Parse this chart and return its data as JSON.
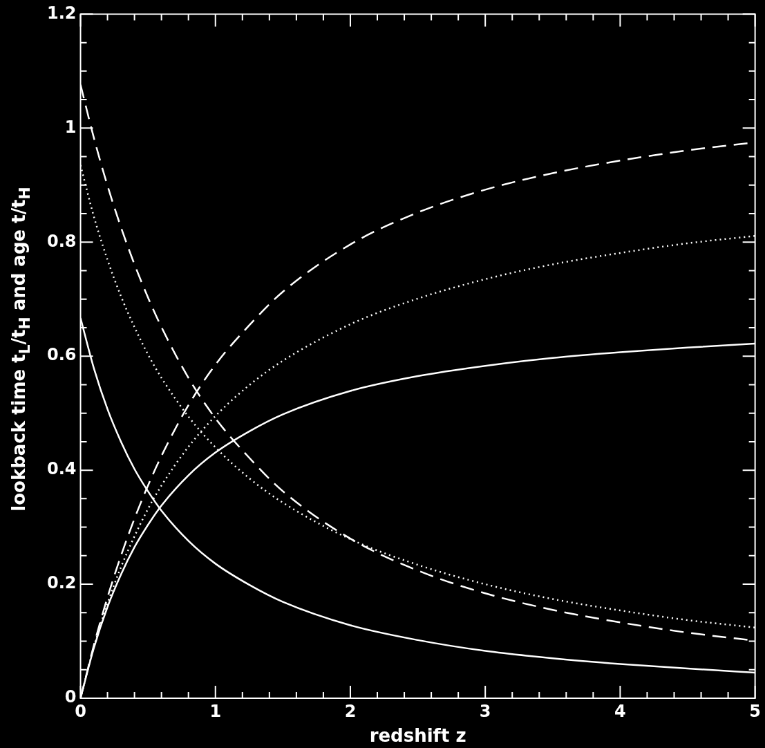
{
  "chart_data": {
    "type": "line",
    "xlabel": "redshift z",
    "ylabel": "lookback time  t$_{L}$/t$_{H}$  and age  t/t$_{H}$",
    "x": [
      0,
      0.1,
      0.2,
      0.3,
      0.4,
      0.5,
      0.6,
      0.8,
      1,
      1.25,
      1.5,
      2,
      2.5,
      3,
      3.5,
      4,
      4.5,
      5
    ],
    "xlim": [
      0,
      5
    ],
    "ylim": [
      0,
      1.2
    ],
    "xticks": [
      0,
      {
        "value": 0.2,
        "label": null
      },
      {
        "value": 0.4,
        "label": null
      },
      {
        "value": 0.6,
        "label": null
      },
      {
        "value": 0.8,
        "label": null
      },
      1,
      {
        "value": 1.2,
        "label": null
      },
      {
        "value": 1.4,
        "label": null
      },
      {
        "value": 1.6,
        "label": null
      },
      {
        "value": 1.8,
        "label": null
      },
      2,
      {
        "value": 2.2,
        "label": null
      },
      {
        "value": 2.4,
        "label": null
      },
      {
        "value": 2.6,
        "label": null
      },
      {
        "value": 2.8,
        "label": null
      },
      3,
      {
        "value": 3.2,
        "label": null
      },
      {
        "value": 3.4,
        "label": null
      },
      {
        "value": 3.6,
        "label": null
      },
      {
        "value": 3.8,
        "label": null
      },
      4,
      {
        "value": 4.2,
        "label": null
      },
      {
        "value": 4.4,
        "label": null
      },
      {
        "value": 4.6,
        "label": null
      },
      {
        "value": 4.8,
        "label": null
      },
      5
    ],
    "yticks": [
      0,
      {
        "value": 0.05,
        "label": null
      },
      {
        "value": 0.1,
        "label": null
      },
      {
        "value": 0.15,
        "label": null
      },
      0.2,
      {
        "value": 0.25,
        "label": null
      },
      {
        "value": 0.3,
        "label": null
      },
      {
        "value": 0.35,
        "label": null
      },
      0.4,
      {
        "value": 0.45,
        "label": null
      },
      {
        "value": 0.5,
        "label": null
      },
      {
        "value": 0.55,
        "label": null
      },
      0.6,
      {
        "value": 0.65,
        "label": null
      },
      {
        "value": 0.7,
        "label": null
      },
      {
        "value": 0.75,
        "label": null
      },
      0.8,
      {
        "value": 0.85,
        "label": null
      },
      {
        "value": 0.9,
        "label": null
      },
      {
        "value": 0.95,
        "label": null
      },
      1,
      {
        "value": 1.05,
        "label": null
      },
      {
        "value": 1.1,
        "label": null
      },
      {
        "value": 1.15,
        "label": null
      },
      1.2
    ],
    "series": [
      {
        "color": "#ffffff",
        "line_style": "solid",
        "values": [
          0.667,
          0.578,
          0.507,
          0.45,
          0.402,
          0.363,
          0.329,
          0.276,
          0.236,
          0.199,
          0.169,
          0.128,
          0.102,
          0.083,
          0.07,
          0.06,
          0.052,
          0.045
        ]
      },
      {
        "color": "#ffffff",
        "line_style": "solid",
        "values": [
          0,
          0.089,
          0.16,
          0.217,
          0.265,
          0.304,
          0.338,
          0.391,
          0.431,
          0.468,
          0.498,
          0.539,
          0.565,
          0.583,
          0.597,
          0.607,
          0.615,
          0.622
        ]
      },
      {
        "color": "#ffffff",
        "line_style": "dotted",
        "values": [
          0.935,
          0.844,
          0.769,
          0.705,
          0.651,
          0.603,
          0.562,
          0.494,
          0.44,
          0.386,
          0.343,
          0.279,
          0.234,
          0.2,
          0.174,
          0.154,
          0.137,
          0.124
        ]
      },
      {
        "color": "#ffffff",
        "line_style": "dotted",
        "values": [
          0,
          0.091,
          0.166,
          0.23,
          0.284,
          0.332,
          0.373,
          0.441,
          0.495,
          0.549,
          0.592,
          0.656,
          0.701,
          0.735,
          0.761,
          0.781,
          0.798,
          0.811
        ]
      },
      {
        "color": "#ffffff",
        "line_style": "dashed",
        "values": [
          1.076,
          0.982,
          0.899,
          0.826,
          0.761,
          0.703,
          0.651,
          0.562,
          0.491,
          0.422,
          0.363,
          0.28,
          0.224,
          0.184,
          0.155,
          0.133,
          0.115,
          0.101
        ]
      },
      {
        "color": "#ffffff",
        "line_style": "dashed",
        "values": [
          0,
          0.094,
          0.177,
          0.25,
          0.315,
          0.373,
          0.425,
          0.514,
          0.585,
          0.654,
          0.713,
          0.796,
          0.852,
          0.892,
          0.921,
          0.943,
          0.961,
          0.975
        ]
      }
    ]
  }
}
